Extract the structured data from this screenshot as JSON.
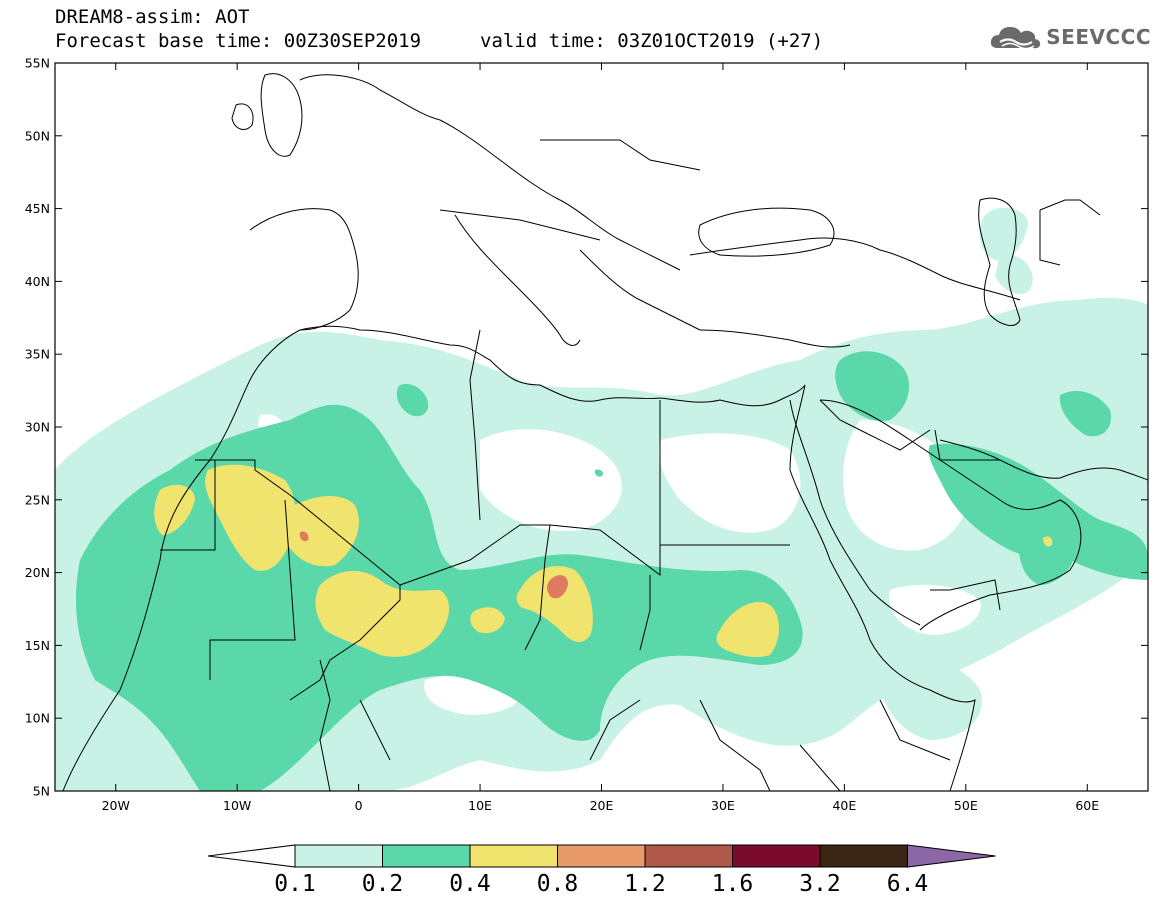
{
  "header": {
    "title": "DREAM8-assim: AOT",
    "base_time": "Forecast base time: 00Z30SEP2019",
    "valid_time": "valid time: 03Z01OCT2019 (+27)"
  },
  "logo": {
    "text": "SEEVCCC",
    "icon": "cloud-icon"
  },
  "map": {
    "lon_range": [
      -25,
      65
    ],
    "lat_range": [
      5,
      55
    ],
    "lat_ticks": [
      {
        "value": 55,
        "label": "55N"
      },
      {
        "value": 50,
        "label": "50N"
      },
      {
        "value": 45,
        "label": "45N"
      },
      {
        "value": 40,
        "label": "40N"
      },
      {
        "value": 35,
        "label": "35N"
      },
      {
        "value": 30,
        "label": "30N"
      },
      {
        "value": 25,
        "label": "25N"
      },
      {
        "value": 20,
        "label": "20N"
      },
      {
        "value": 15,
        "label": "15N"
      },
      {
        "value": 10,
        "label": "10N"
      },
      {
        "value": 5,
        "label": "5N"
      }
    ],
    "lon_ticks": [
      {
        "value": -20,
        "label": "20W"
      },
      {
        "value": -10,
        "label": "10W"
      },
      {
        "value": 0,
        "label": "0"
      },
      {
        "value": 10,
        "label": "10E"
      },
      {
        "value": 20,
        "label": "20E"
      },
      {
        "value": 30,
        "label": "30E"
      },
      {
        "value": 40,
        "label": "40E"
      },
      {
        "value": 50,
        "label": "50E"
      },
      {
        "value": 60,
        "label": "60E"
      }
    ]
  },
  "colorbar": {
    "levels": [
      "0.1",
      "0.2",
      "0.4",
      "0.8",
      "1.2",
      "1.6",
      "3.2",
      "6.4"
    ],
    "colors": [
      "#ffffff",
      "#c8f2e6",
      "#5ad8aa",
      "#f0e36e",
      "#e89a6a",
      "#b0584a",
      "#7a0a2e",
      "#3a2414",
      "#8a68a6"
    ]
  }
}
